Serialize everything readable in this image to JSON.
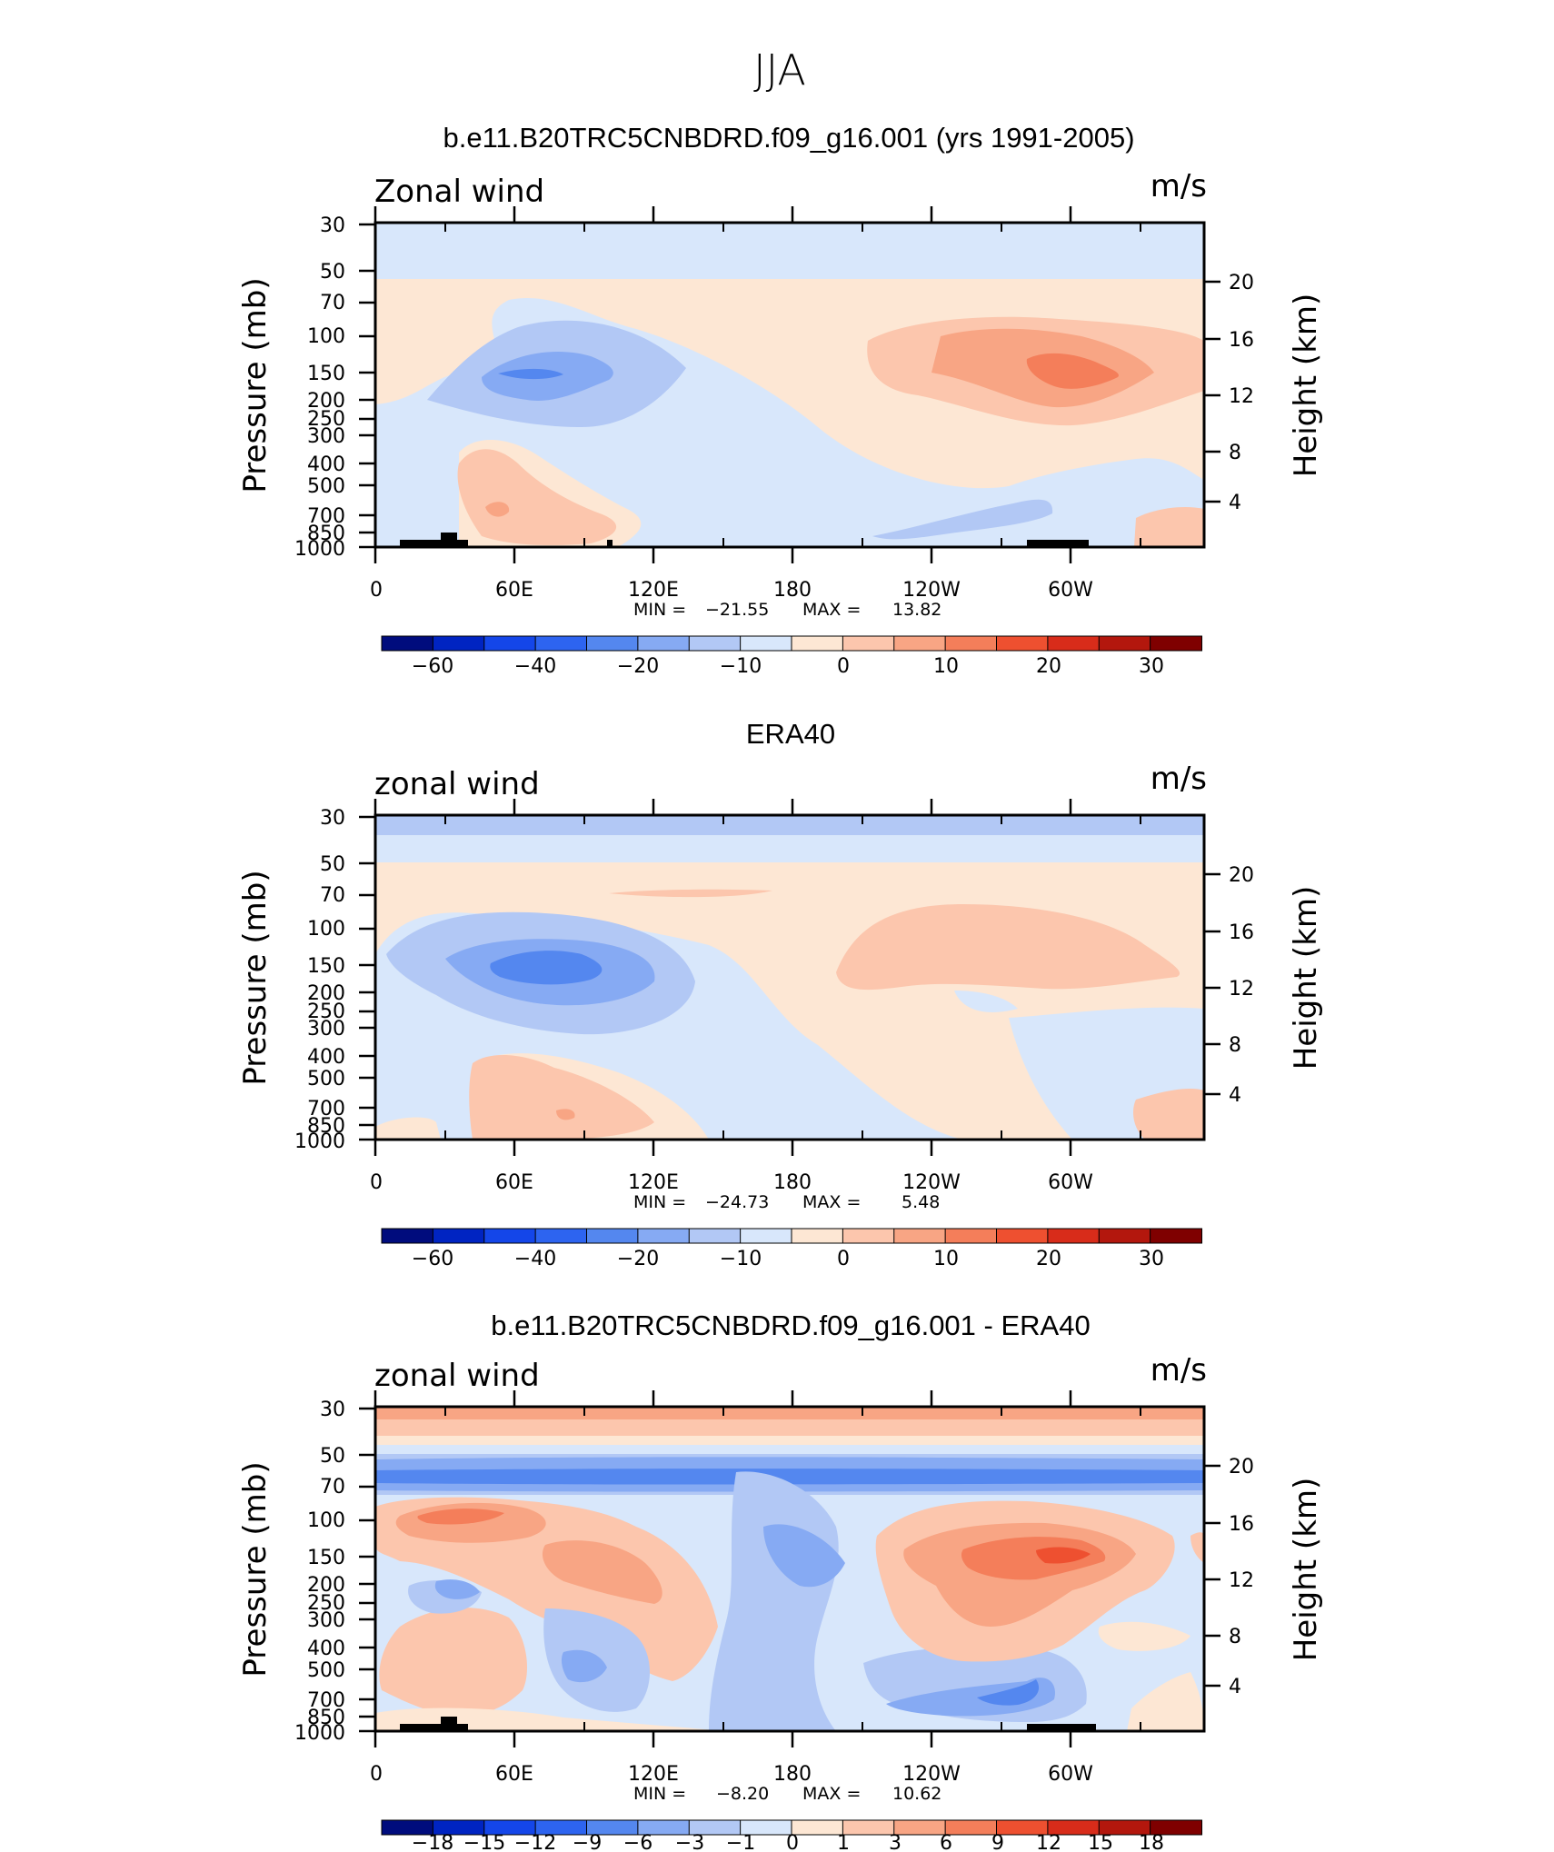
{
  "figure_title": "JJA",
  "chart_data": [
    {
      "type": "heatmap",
      "title": "b.e11.B20TRC5CNBDRD.f09_g16.001 (yrs 1991-2005)",
      "variable_label": "Zonal wind",
      "units_label": "m/s",
      "ylabel": "Pressure (mb)",
      "ylabel_right": "Height (km)",
      "x_ticks": [
        "0",
        "60E",
        "120E",
        "180",
        "120W",
        "60W"
      ],
      "y_ticks": [
        "30",
        "50",
        "70",
        "100",
        "150",
        "200",
        "250",
        "300",
        "400",
        "500",
        "700",
        "850",
        "1000"
      ],
      "y_ticks_right": [
        "20",
        "16",
        "12",
        "8",
        "4"
      ],
      "stats": {
        "min_label": "MIN =",
        "min": "−21.55",
        "max_label": "MAX =",
        "max": "13.82"
      },
      "colorbar_labels": [
        "−60",
        "−40",
        "−20",
        "−10",
        "0",
        "10",
        "20",
        "30"
      ],
      "colorbar_colors": [
        "#000c7d",
        "#0024c2",
        "#1446e9",
        "#2d64f0",
        "#5487ef",
        "#86aaf3",
        "#b2c8f5",
        "#d8e7fb",
        "#fde7d4",
        "#fcc6ad",
        "#f8a584",
        "#f47e5a",
        "#ee5030",
        "#d82c1a",
        "#b3170d",
        "#7f0000"
      ]
    },
    {
      "type": "heatmap",
      "title": "ERA40",
      "variable_label": "zonal wind",
      "units_label": "m/s",
      "ylabel": "Pressure (mb)",
      "ylabel_right": "Height (km)",
      "x_ticks": [
        "0",
        "60E",
        "120E",
        "180",
        "120W",
        "60W"
      ],
      "y_ticks": [
        "30",
        "50",
        "70",
        "100",
        "150",
        "200",
        "250",
        "300",
        "400",
        "500",
        "700",
        "850",
        "1000"
      ],
      "y_ticks_right": [
        "20",
        "16",
        "12",
        "8",
        "4"
      ],
      "stats": {
        "min_label": "MIN =",
        "min": "−24.73",
        "max_label": "MAX =",
        "max": "5.48"
      },
      "colorbar_labels": [
        "−60",
        "−40",
        "−20",
        "−10",
        "0",
        "10",
        "20",
        "30"
      ],
      "colorbar_colors": [
        "#000c7d",
        "#0024c2",
        "#1446e9",
        "#2d64f0",
        "#5487ef",
        "#86aaf3",
        "#b2c8f5",
        "#d8e7fb",
        "#fde7d4",
        "#fcc6ad",
        "#f8a584",
        "#f47e5a",
        "#ee5030",
        "#d82c1a",
        "#b3170d",
        "#7f0000"
      ]
    },
    {
      "type": "heatmap",
      "title": "b.e11.B20TRC5CNBDRD.f09_g16.001 - ERA40",
      "variable_label": "zonal wind",
      "units_label": "m/s",
      "ylabel": "Pressure (mb)",
      "ylabel_right": "Height (km)",
      "x_ticks": [
        "0",
        "60E",
        "120E",
        "180",
        "120W",
        "60W"
      ],
      "y_ticks": [
        "30",
        "50",
        "70",
        "100",
        "150",
        "200",
        "250",
        "300",
        "400",
        "500",
        "700",
        "850",
        "1000"
      ],
      "y_ticks_right": [
        "20",
        "16",
        "12",
        "8",
        "4"
      ],
      "stats": {
        "min_label": "MIN =",
        "min": "−8.20",
        "max_label": "MAX =",
        "max": "10.62"
      },
      "colorbar_labels": [
        "−18",
        "−15",
        "−12",
        "−9",
        "−6",
        "−3",
        "−1",
        "0",
        "1",
        "3",
        "6",
        "9",
        "12",
        "15",
        "18"
      ],
      "colorbar_colors": [
        "#000c7d",
        "#0024c2",
        "#1446e9",
        "#2d64f0",
        "#5487ef",
        "#86aaf3",
        "#b2c8f5",
        "#d8e7fb",
        "#fde7d4",
        "#fcc6ad",
        "#f8a584",
        "#f47e5a",
        "#ee5030",
        "#d82c1a",
        "#b3170d",
        "#7f0000"
      ]
    }
  ]
}
